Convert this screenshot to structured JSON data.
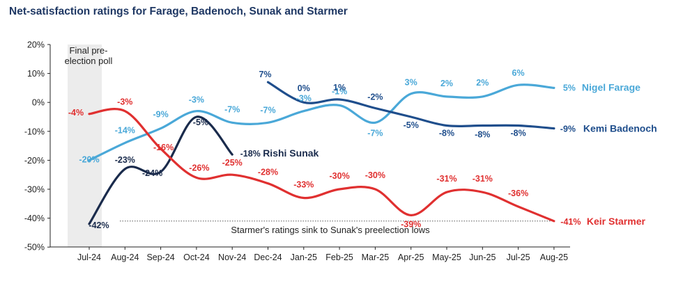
{
  "title": "Net-satisfaction ratings for Farage, Badenoch, Sunak and Starmer",
  "chart_data": {
    "type": "line",
    "title": "Net-satisfaction ratings for Farage, Badenoch, Sunak and Starmer",
    "xlabel": "",
    "ylabel": "",
    "ylim": [
      -50,
      20
    ],
    "y_ticks": [
      "20%",
      "10%",
      "0%",
      "-10%",
      "-20%",
      "-30%",
      "-40%",
      "-50%"
    ],
    "categories": [
      "Jul-24",
      "Aug-24",
      "Sep-24",
      "Oct-24",
      "Nov-24",
      "Dec-24",
      "Jan-25",
      "Feb-25",
      "Mar-25",
      "Apr-25",
      "May-25",
      "Jun-25",
      "Jul-25",
      "Aug-25"
    ],
    "series": [
      {
        "name": "Nigel Farage",
        "color": "#4aa8d8",
        "values": [
          -20,
          -14,
          -9,
          -3,
          -7,
          -7,
          -3,
          -1,
          -7,
          3,
          2,
          2,
          6,
          5
        ],
        "labels": [
          "-20%",
          "-14%",
          "-9%",
          "-3%",
          "-7%",
          "-7%",
          "-3%",
          "-1%",
          "-7%",
          "3%",
          "2%",
          "2%",
          "6%",
          "5%"
        ],
        "end_label": "Nigel Farage"
      },
      {
        "name": "Kemi Badenoch",
        "color": "#1f4e8c",
        "values": [
          null,
          null,
          null,
          null,
          null,
          7,
          0,
          1,
          -2,
          -5,
          -8,
          -8,
          -8,
          -9
        ],
        "labels": [
          null,
          null,
          null,
          null,
          null,
          "7%",
          "0%",
          "1%",
          "-2%",
          "-5%",
          "-8%",
          "-8%",
          "-8%",
          "-9%"
        ],
        "end_label": "Kemi Badenoch"
      },
      {
        "name": "Rishi Sunak",
        "color": "#1a2b4c",
        "values": [
          -42,
          -23,
          -24,
          -5,
          -18,
          null,
          null,
          null,
          null,
          null,
          null,
          null,
          null,
          null
        ],
        "labels": [
          "-42%",
          "-23%",
          "-24%",
          "-5%",
          "-18%",
          null,
          null,
          null,
          null,
          null,
          null,
          null,
          null,
          null
        ],
        "end_label": "Rishi Sunak"
      },
      {
        "name": "Keir Starmer",
        "color": "#e03030",
        "values": [
          -4,
          -3,
          -16,
          -26,
          -25,
          -28,
          -33,
          -30,
          -30,
          -39,
          -31,
          -31,
          -36,
          -41
        ],
        "labels": [
          "-4%",
          "-3%",
          "-16%",
          "-26%",
          "-25%",
          "-28%",
          "-33%",
          "-30%",
          "-30%",
          "-39%",
          "-31%",
          "-31%",
          "-36%",
          "-41%"
        ],
        "end_label": "Keir Starmer"
      }
    ],
    "annotations": {
      "final_poll": "Final pre-election poll",
      "final_poll_lines": [
        "Final pre-",
        "election poll"
      ],
      "baseline_text": "Starmer's ratings sink to Sunak's preelection lows",
      "baseline_value": -41
    }
  }
}
